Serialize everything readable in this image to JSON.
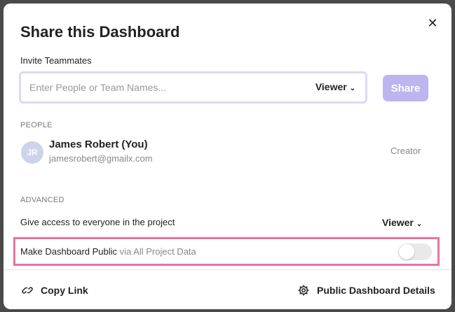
{
  "modal": {
    "title": "Share this Dashboard",
    "close_icon": "close-icon"
  },
  "invite": {
    "label": "Invite Teammates",
    "placeholder": "Enter People or Team Names...",
    "role": "Viewer",
    "share_label": "Share"
  },
  "people": {
    "heading": "PEOPLE",
    "items": [
      {
        "initials": "JR",
        "name": "James Robert (You)",
        "email": "jamesrobert@gmailx.com",
        "role": "Creator"
      }
    ]
  },
  "advanced": {
    "heading": "ADVANCED",
    "access_label": "Give access to everyone in the project",
    "access_role": "Viewer",
    "public_label": "Make Dashboard Public",
    "public_sub": "via All Project Data",
    "public_enabled": false
  },
  "footer": {
    "copy_link": "Copy Link",
    "details": "Public Dashboard Details"
  },
  "colors": {
    "accent": "#bcb5ef",
    "highlight": "#ee6fa0"
  }
}
